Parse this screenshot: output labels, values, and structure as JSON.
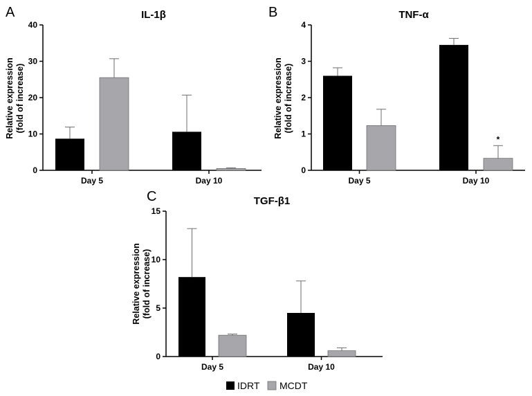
{
  "legend": {
    "items": [
      {
        "name": "IDRT",
        "color": "#000000"
      },
      {
        "name": "MCDT",
        "color": "#a7a7ab"
      }
    ]
  },
  "chart_data": [
    {
      "type": "bar",
      "panel": "A",
      "title": "IL-1β",
      "ylabel_line1": "Relative expression",
      "ylabel_line2": "(fold of increase)",
      "categories": [
        "Day 5",
        "Day 10"
      ],
      "ylim": [
        0,
        40
      ],
      "yticks": [
        0,
        10,
        20,
        30,
        40
      ],
      "series": [
        {
          "name": "IDRT",
          "values": [
            8.7,
            10.6
          ],
          "errors": [
            3.2,
            10.1
          ]
        },
        {
          "name": "MCDT",
          "values": [
            25.5,
            0.5
          ],
          "errors": [
            5.2,
            0.2
          ]
        }
      ],
      "annotations": []
    },
    {
      "type": "bar",
      "panel": "B",
      "title": "TNF-α",
      "ylabel_line1": "Relative expression",
      "ylabel_line2": "(fold of increase)",
      "categories": [
        "Day 5",
        "Day 10"
      ],
      "ylim": [
        0,
        4
      ],
      "yticks": [
        0,
        1,
        2,
        3,
        4
      ],
      "series": [
        {
          "name": "IDRT",
          "values": [
            2.6,
            3.45
          ],
          "errors": [
            0.22,
            0.18
          ]
        },
        {
          "name": "MCDT",
          "values": [
            1.23,
            0.33
          ],
          "errors": [
            0.45,
            0.35
          ]
        }
      ],
      "annotations": [
        {
          "category": 1,
          "series": 1,
          "text": "*"
        }
      ]
    },
    {
      "type": "bar",
      "panel": "C",
      "title": "TGF-β1",
      "ylabel_line1": "Relative expression",
      "ylabel_line2": "(fold of increase)",
      "categories": [
        "Day 5",
        "Day 10"
      ],
      "ylim": [
        0,
        15
      ],
      "yticks": [
        0,
        5,
        10,
        15
      ],
      "series": [
        {
          "name": "IDRT",
          "values": [
            8.2,
            4.5
          ],
          "errors": [
            5.0,
            3.3
          ]
        },
        {
          "name": "MCDT",
          "values": [
            2.2,
            0.6
          ],
          "errors": [
            0.12,
            0.3
          ]
        }
      ],
      "annotations": []
    }
  ]
}
